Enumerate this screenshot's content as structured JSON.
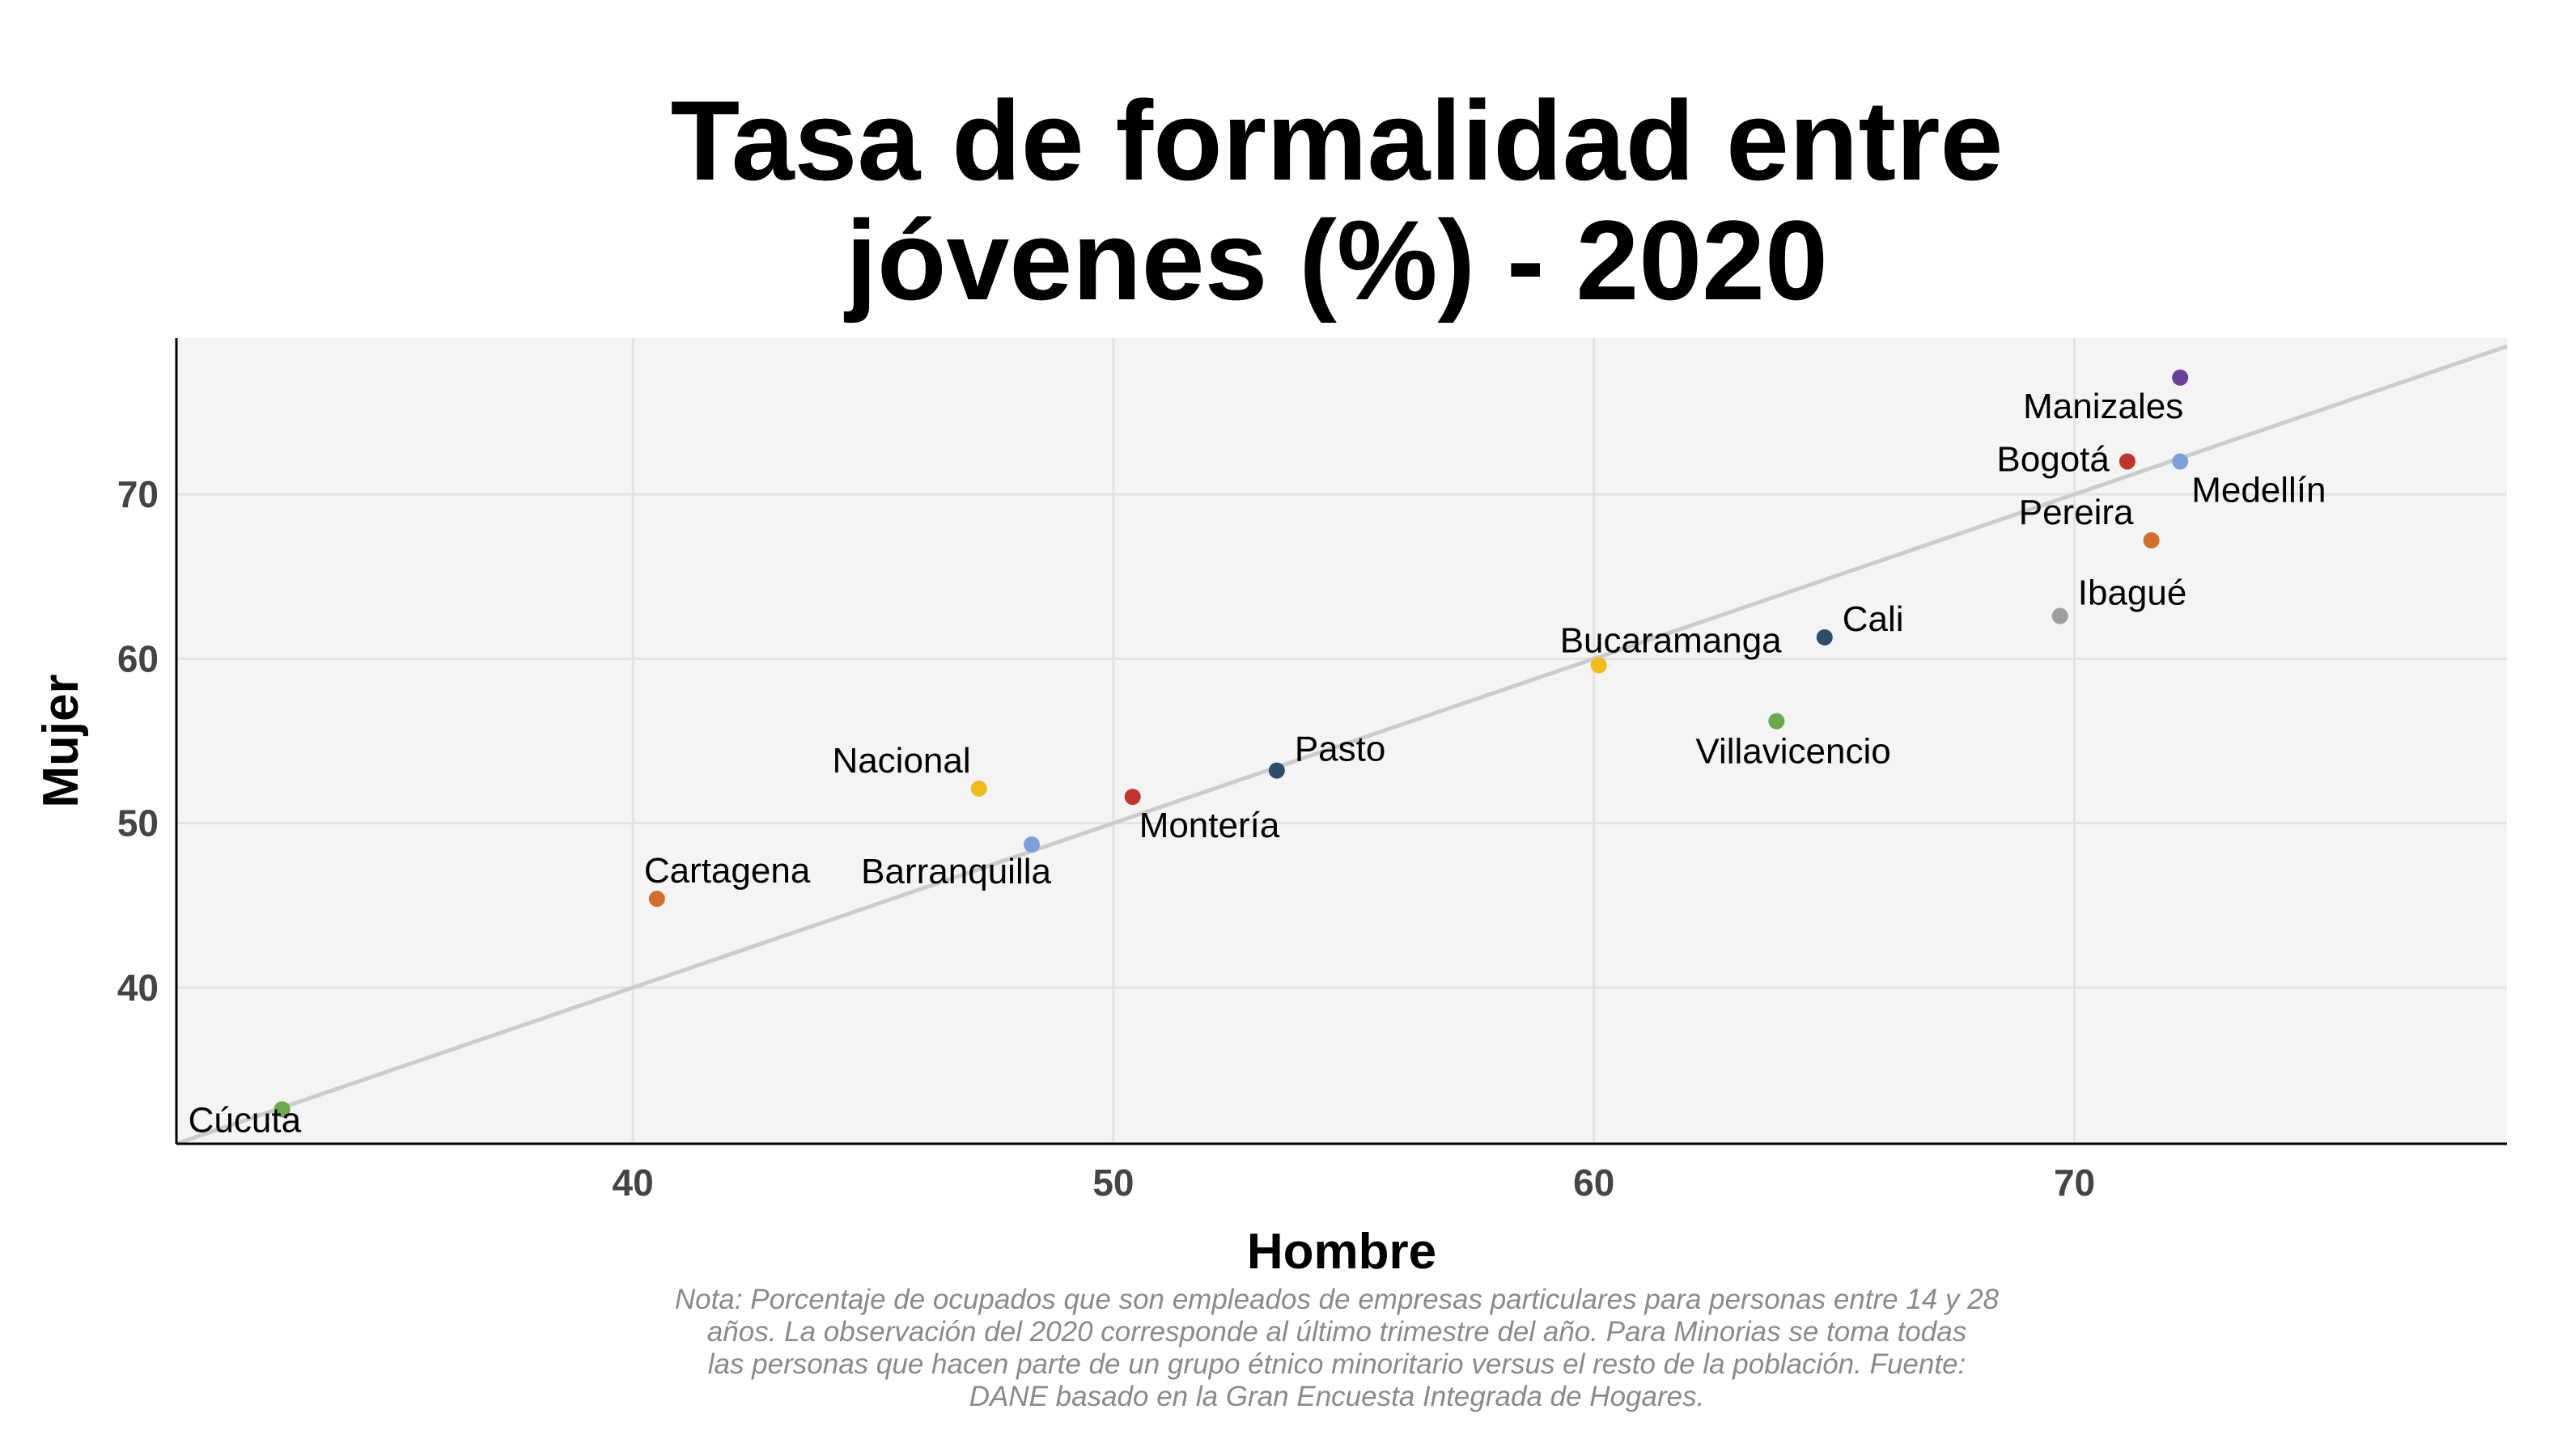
{
  "chart_data": {
    "type": "scatter",
    "title_lines": [
      "Tasa de formalidad entre",
      "jóvenes (%) - 2020"
    ],
    "xlabel": "Hombre",
    "ylabel": "Mujer",
    "xlim": [
      30.5,
      79
    ],
    "ylim": [
      30.5,
      79.5
    ],
    "xticks": [
      40,
      50,
      60,
      70
    ],
    "yticks": [
      40,
      50,
      60,
      70
    ],
    "grid": true,
    "reference_line": {
      "type": "identity",
      "color": "#cccccc"
    },
    "points": [
      {
        "name": "Cúcuta",
        "x": 32.7,
        "y": 32.6,
        "color": "#6aaa4c"
      },
      {
        "name": "Cartagena",
        "x": 40.5,
        "y": 45.4,
        "color": "#d36f2b"
      },
      {
        "name": "Nacional",
        "x": 47.2,
        "y": 52.1,
        "color": "#f0bc1c"
      },
      {
        "name": "Barranquilla",
        "x": 48.3,
        "y": 48.7,
        "color": "#7ea0d8"
      },
      {
        "name": "Montería",
        "x": 50.4,
        "y": 51.6,
        "color": "#c0352b"
      },
      {
        "name": "Pasto",
        "x": 53.4,
        "y": 53.2,
        "color": "#2f4b6e"
      },
      {
        "name": "Bucaramanga",
        "x": 60.1,
        "y": 59.6,
        "color": "#f0bc1c"
      },
      {
        "name": "Villavicencio",
        "x": 63.8,
        "y": 56.2,
        "color": "#6aaa4c"
      },
      {
        "name": "Cali",
        "x": 64.8,
        "y": 61.3,
        "color": "#2f4b6e"
      },
      {
        "name": "Ibagué",
        "x": 69.7,
        "y": 62.6,
        "color": "#9e9e9e"
      },
      {
        "name": "Pereira",
        "x": 71.6,
        "y": 67.2,
        "color": "#d36f2b"
      },
      {
        "name": "Bogotá",
        "x": 71.1,
        "y": 72.0,
        "color": "#c0352b"
      },
      {
        "name": "Medellín",
        "x": 72.2,
        "y": 72.0,
        "color": "#7ea0d8"
      },
      {
        "name": "Manizales",
        "x": 72.2,
        "y": 77.1,
        "color": "#6a3f9c"
      }
    ],
    "note_lines": [
      "Nota: Porcentaje de ocupados que son empleados de empresas particulares para personas entre 14 y 28",
      "años. La observación del 2020 corresponde al último trimestre del año. Para Minorias se toma todas",
      "las personas que hacen parte de un grupo étnico minoritario versus el resto de la población. Fuente:",
      "DANE basado en la Gran Encuesta Integrada de Hogares."
    ]
  }
}
